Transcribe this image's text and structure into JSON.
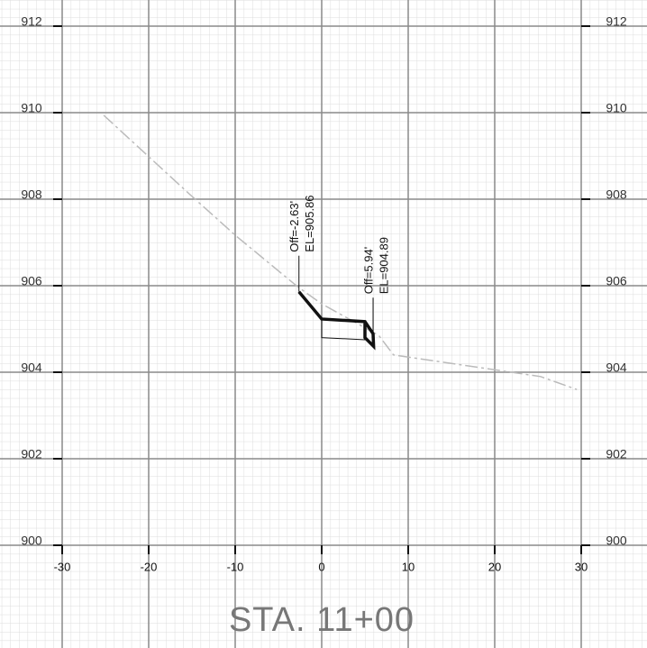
{
  "chart_data": {
    "type": "line",
    "title": "STA. 11+00",
    "xlim": [
      -30,
      30
    ],
    "ylim": [
      900,
      912
    ],
    "xticks": [
      -30,
      -20,
      -10,
      0,
      10,
      20,
      30
    ],
    "yticks": [
      900,
      902,
      904,
      906,
      908,
      910,
      912
    ],
    "grid": true,
    "series": [
      {
        "color": "#bbbbbb",
        "style": "dashdot",
        "width": 1.5,
        "x": [
          -25.2,
          -15.3,
          -9.9,
          -2.8,
          0,
          6.6,
          8.3,
          25.3,
          29.5
        ],
        "values": [
          909.94,
          908.12,
          907.15,
          905.98,
          905.58,
          904.85,
          904.4,
          903.9,
          903.6
        ]
      },
      {
        "color": "#111111",
        "style": "solid",
        "width": 3.5,
        "x": [
          -2.63,
          0,
          5.0,
          5.94,
          6.0,
          5.0,
          5.0
        ],
        "values": [
          905.86,
          905.23,
          905.17,
          904.89,
          904.6,
          904.8,
          905.17
        ]
      },
      {
        "color": "#111111",
        "style": "solid",
        "width": 1,
        "x": [
          0,
          0,
          5.0
        ],
        "values": [
          905.23,
          904.8,
          904.75
        ]
      }
    ],
    "annotations": [
      {
        "lines": [
          "Off=-2.63'",
          "EL=905.86"
        ],
        "x": -2.63,
        "y": 905.86
      },
      {
        "lines": [
          "Off=5.94'",
          "EL=904.89"
        ],
        "x": 5.94,
        "y": 904.89
      }
    ]
  }
}
